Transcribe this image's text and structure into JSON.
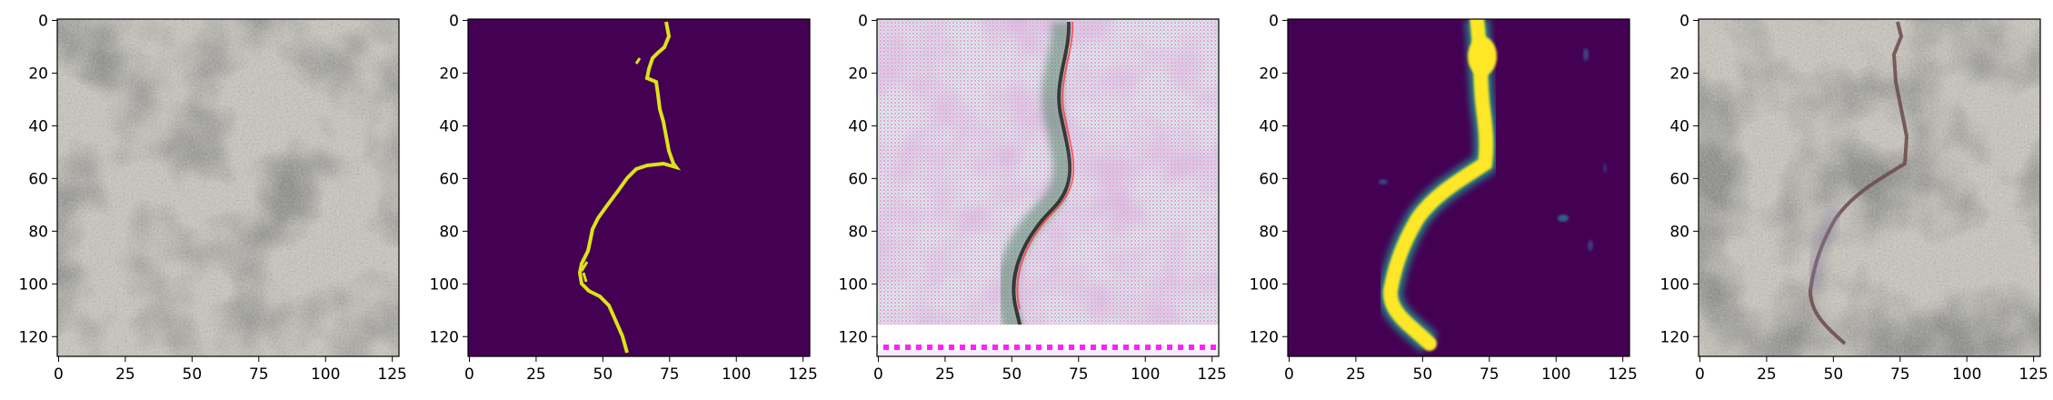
{
  "figure": {
    "panels": [
      {
        "name": "input-texture",
        "kind": "texture",
        "palette": {
          "base": "#c9c6bd",
          "dark": "#4f4f4b",
          "light": "#ebe9e2"
        },
        "x_ticks": [
          "0",
          "25",
          "50",
          "75",
          "100",
          "125"
        ],
        "y_ticks": [
          "0",
          "20",
          "40",
          "60",
          "80",
          "100",
          "120"
        ]
      },
      {
        "name": "ground-truth-mask",
        "kind": "mask",
        "palette": {
          "background": "#440154",
          "foreground": "#dde318"
        },
        "x_ticks": [
          "0",
          "25",
          "50",
          "75",
          "100",
          "125"
        ],
        "y_ticks": [
          "0",
          "20",
          "40",
          "60",
          "80",
          "100",
          "120"
        ]
      },
      {
        "name": "generated-texture",
        "kind": "generated",
        "palette": {
          "base": "#e6cbe2",
          "accent": "#c07fc0",
          "stripe": "#ff00ff"
        },
        "x_ticks": [
          "0",
          "25",
          "50",
          "75",
          "100",
          "125"
        ],
        "y_ticks": [
          "0",
          "20",
          "40",
          "60",
          "80",
          "100",
          "120"
        ]
      },
      {
        "name": "predicted-heatmap",
        "kind": "heatmap",
        "palette": {
          "background": "#440154",
          "mid": "#21918c",
          "foreground": "#fde725"
        },
        "x_ticks": [
          "0",
          "25",
          "50",
          "75",
          "100",
          "125"
        ],
        "y_ticks": [
          "0",
          "20",
          "40",
          "60",
          "80",
          "100",
          "120"
        ]
      },
      {
        "name": "overlay-texture",
        "kind": "overlay",
        "palette": {
          "base": "#c9c6bd",
          "dark": "#4f4f4b",
          "light": "#ebe9e2",
          "crack": "#6b4a4a"
        },
        "x_ticks": [
          "0",
          "25",
          "50",
          "75",
          "100",
          "125"
        ],
        "y_ticks": [
          "0",
          "20",
          "40",
          "60",
          "80",
          "100",
          "120"
        ]
      }
    ]
  }
}
